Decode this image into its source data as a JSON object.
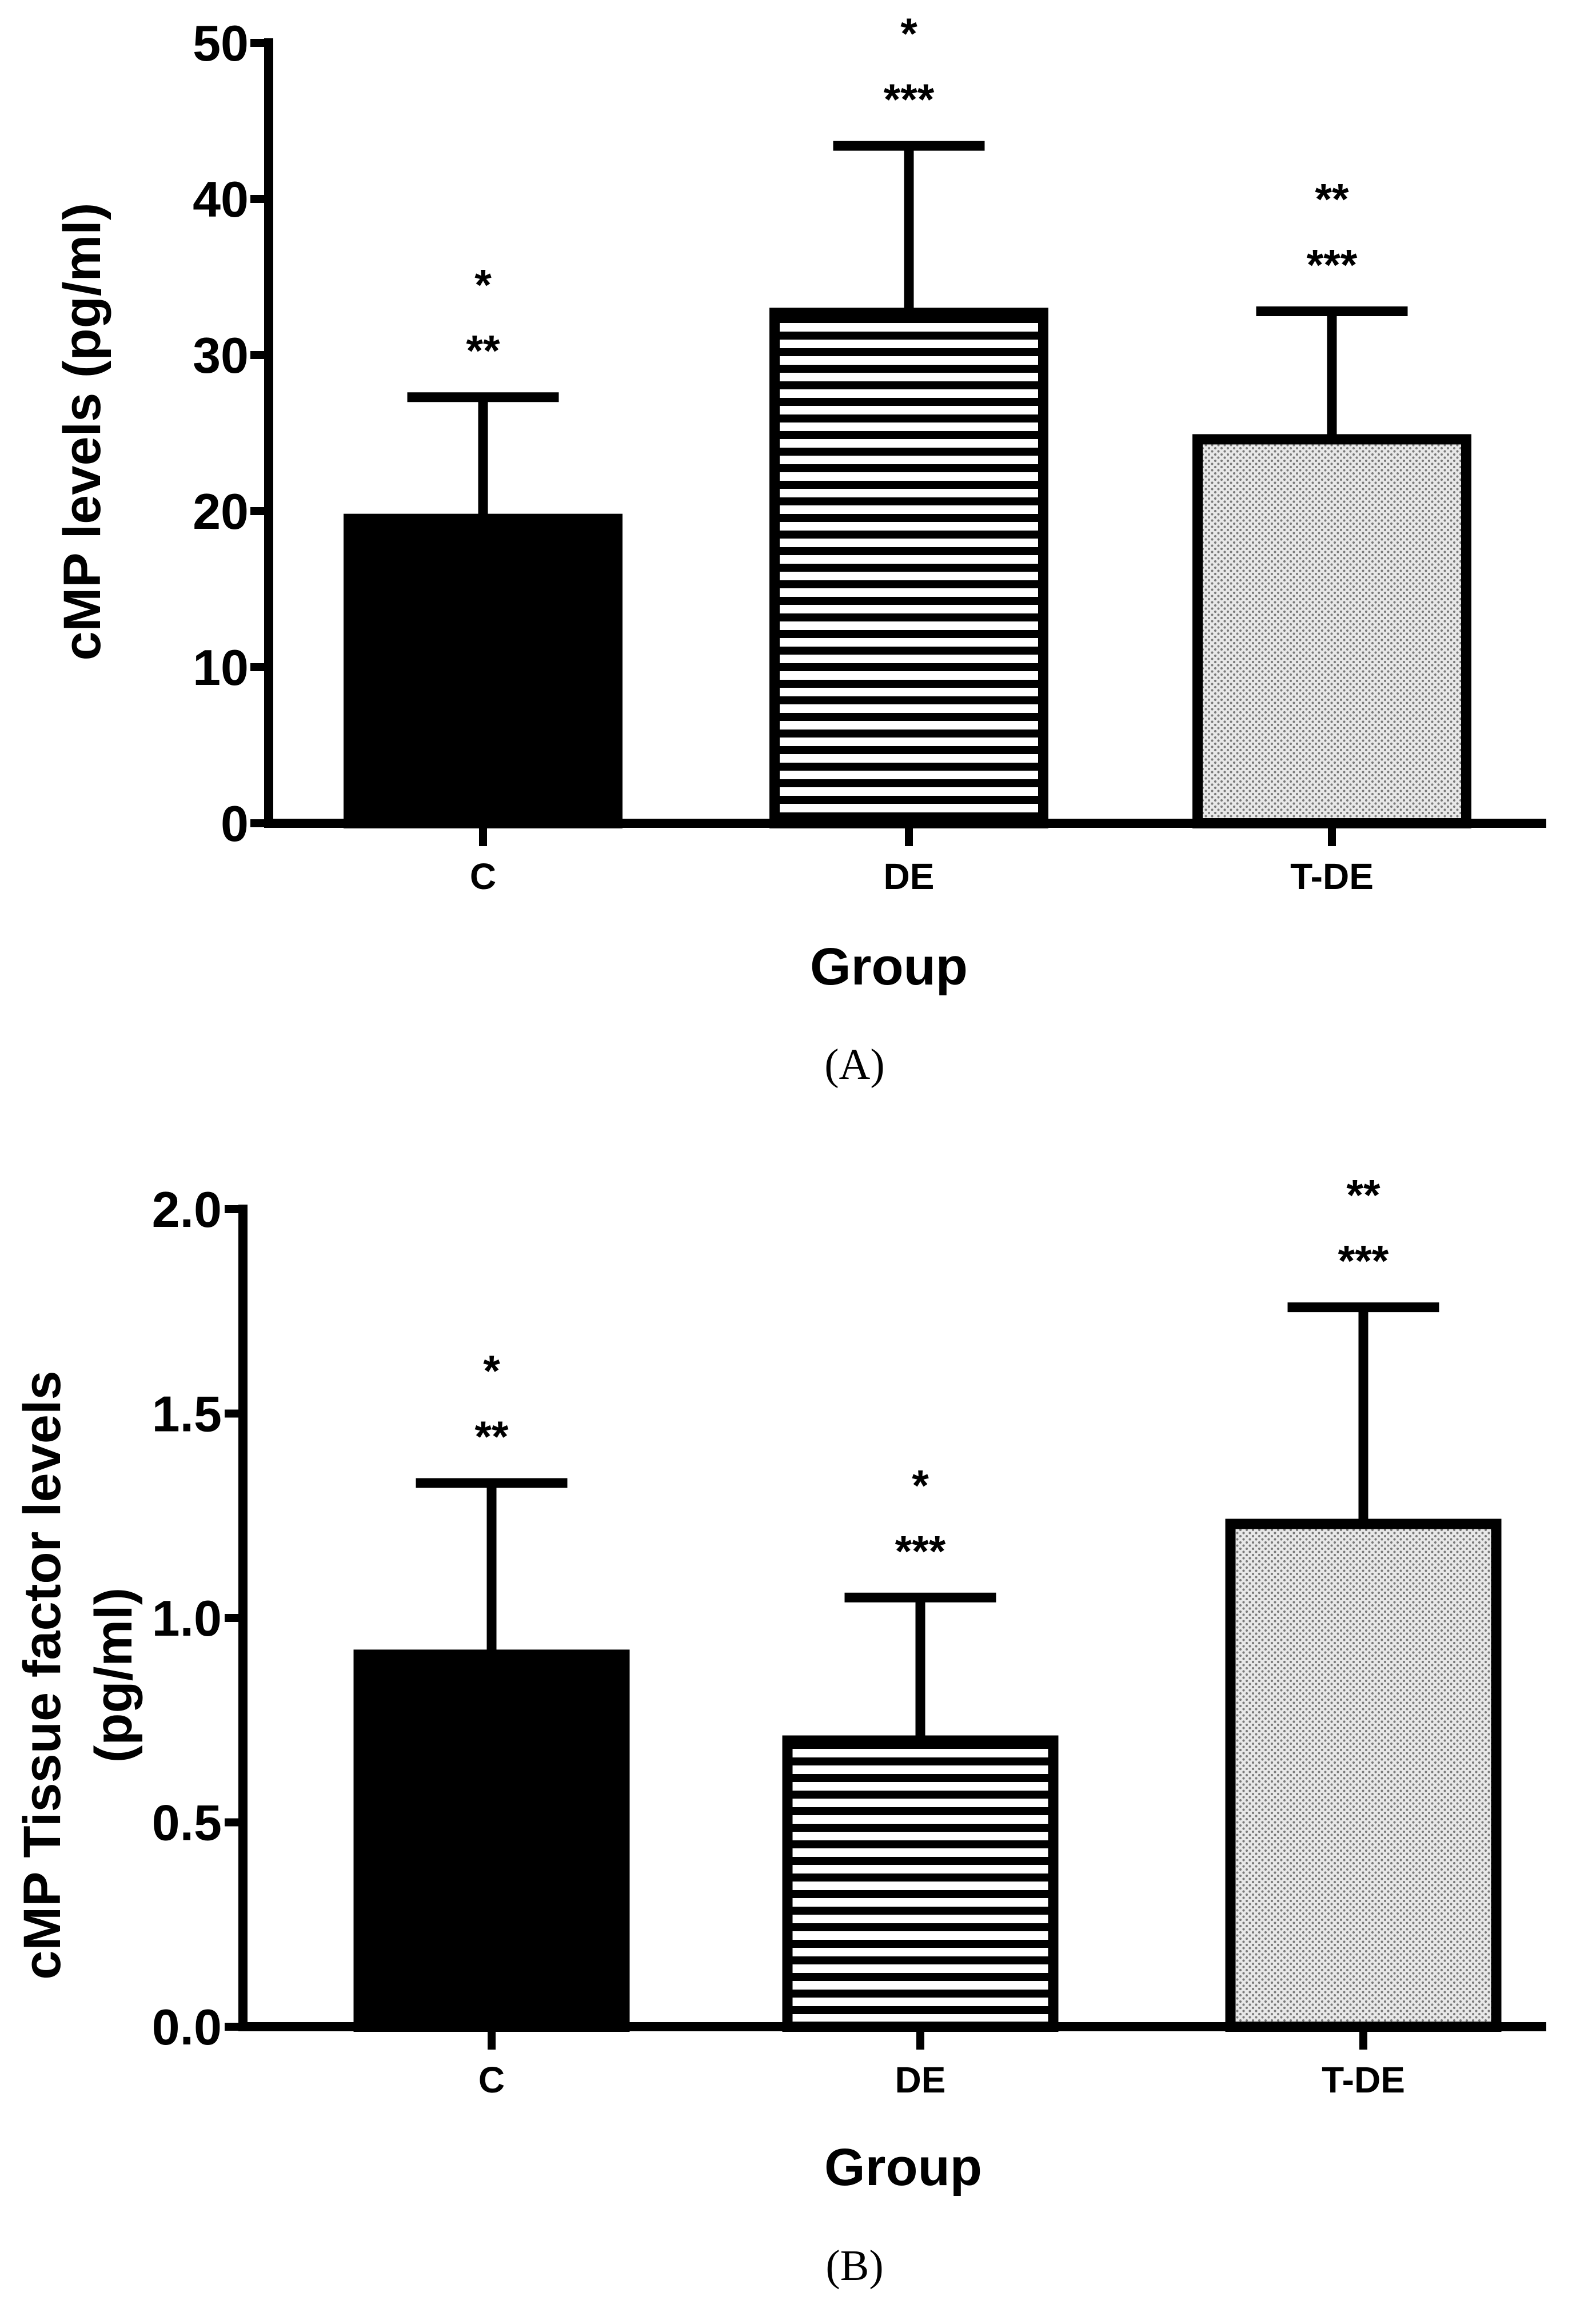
{
  "chart_data": [
    {
      "type": "bar",
      "panel_label": "(A)",
      "xlabel": "Group",
      "ylabel": "cMP levels (pg/ml)",
      "ylim": [
        0,
        50
      ],
      "yticks": [
        "0",
        "10",
        "20",
        "30",
        "40",
        "50"
      ],
      "categories": [
        "C",
        "DE",
        "T-DE"
      ],
      "values": [
        19.5,
        32.7,
        24.6
      ],
      "error_upper": [
        27.3,
        43.4,
        32.8
      ],
      "annotations": [
        [
          "*",
          "**"
        ],
        [
          "*",
          "***"
        ],
        [
          "**",
          "***"
        ]
      ],
      "patterns": [
        "solid-black",
        "horizontal-stripes",
        "dots"
      ]
    },
    {
      "type": "bar",
      "panel_label": "(B)",
      "xlabel": "Group",
      "ylabel_lines": [
        "cMP Tissue factor levels",
        "(pg/ml)"
      ],
      "ylim": [
        0,
        2.0
      ],
      "yticks": [
        "0.0",
        "0.5",
        "1.0",
        "1.5",
        "2.0"
      ],
      "categories": [
        "C",
        "DE",
        "T-DE"
      ],
      "values": [
        0.91,
        0.7,
        1.23
      ],
      "error_upper": [
        1.33,
        1.05,
        1.76
      ],
      "annotations": [
        [
          "*",
          "**"
        ],
        [
          "*",
          "***"
        ],
        [
          "**",
          "***"
        ]
      ],
      "patterns": [
        "solid-black",
        "horizontal-stripes",
        "dots"
      ]
    }
  ]
}
